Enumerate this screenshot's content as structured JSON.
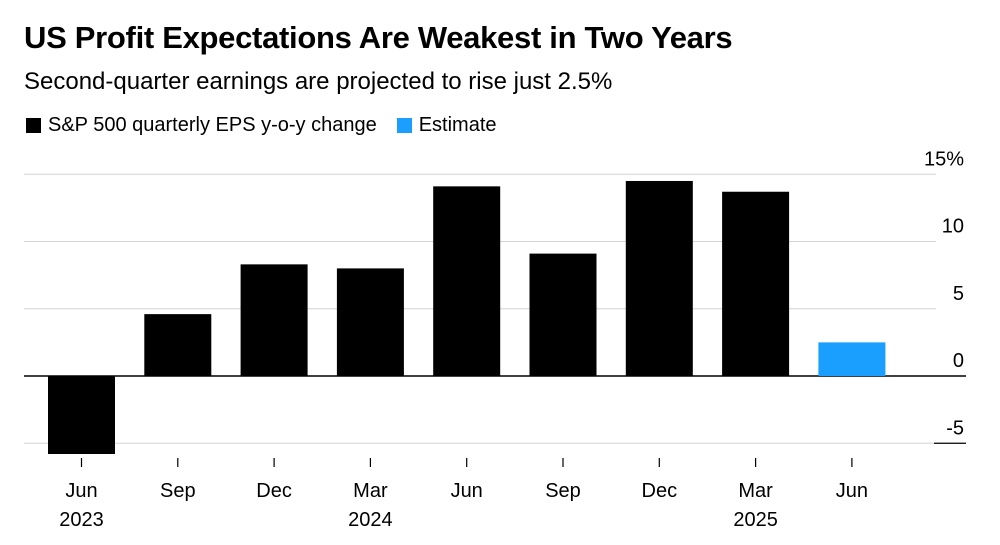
{
  "title": "US Profit Expectations Are Weakest in Two Years",
  "subtitle": "Second-quarter earnings are projected to rise just 2.5%",
  "legend": [
    {
      "label": "S&P 500 quarterly EPS y-o-y change",
      "color": "#000000"
    },
    {
      "label": "Estimate",
      "color": "#1a9fff"
    }
  ],
  "chart_data": {
    "type": "bar",
    "categories": [
      "Jun 2023",
      "Sep 2023",
      "Dec 2023",
      "Mar 2024",
      "Jun 2024",
      "Sep 2024",
      "Dec 2024",
      "Mar 2025",
      "Jun 2025"
    ],
    "tick_labels": [
      {
        "month": "Jun",
        "year": "2023"
      },
      {
        "month": "Sep",
        "year": ""
      },
      {
        "month": "Dec",
        "year": ""
      },
      {
        "month": "Mar",
        "year": "2024"
      },
      {
        "month": "Jun",
        "year": ""
      },
      {
        "month": "Sep",
        "year": ""
      },
      {
        "month": "Dec",
        "year": ""
      },
      {
        "month": "Mar",
        "year": "2025"
      },
      {
        "month": "Jun",
        "year": ""
      }
    ],
    "series": [
      {
        "name": "S&P 500 quarterly EPS y-o-y change",
        "color": "#000000",
        "values": [
          -5.8,
          4.6,
          8.3,
          8.0,
          14.1,
          9.1,
          14.5,
          13.7,
          null
        ]
      },
      {
        "name": "Estimate",
        "color": "#1a9fff",
        "values": [
          null,
          null,
          null,
          null,
          null,
          null,
          null,
          null,
          2.5
        ]
      }
    ],
    "y_ticks": [
      "15%",
      "10",
      "5",
      "0",
      "-5"
    ],
    "y_tick_values": [
      15,
      10,
      5,
      0,
      -5
    ],
    "ylim": [
      -6,
      15
    ],
    "y_axis_side": "right",
    "grid": true,
    "legend_position": "top-left"
  }
}
